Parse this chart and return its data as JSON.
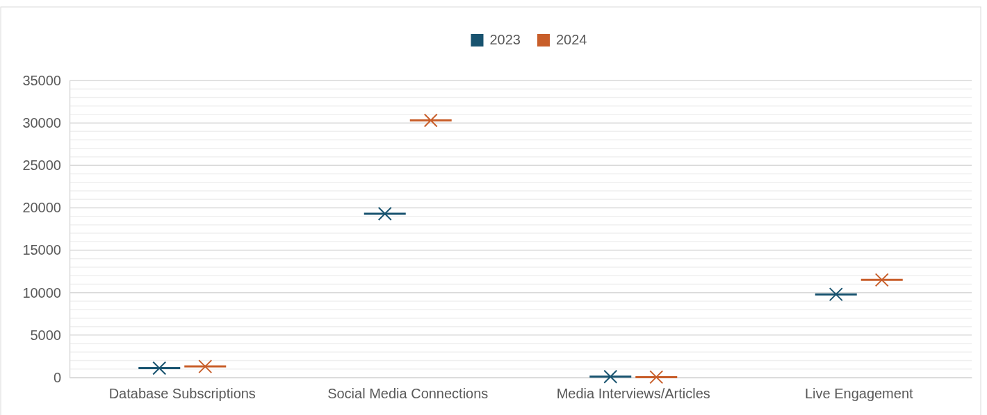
{
  "chart_data": {
    "type": "box",
    "categories": [
      "Database Subscriptions",
      "Social Media Connections",
      "Media Interviews/Articles",
      "Live Engagement"
    ],
    "series": [
      {
        "name": "2023",
        "color": "#18536f",
        "boxes": [
          {
            "low": 1100,
            "q1": 1100,
            "median": 1100,
            "q3": 1100,
            "high": 1100,
            "mean": 1100
          },
          {
            "low": 19300,
            "q1": 19300,
            "median": 19300,
            "q3": 19300,
            "high": 19300,
            "mean": 19300
          },
          {
            "low": 100,
            "q1": 100,
            "median": 100,
            "q3": 100,
            "high": 100,
            "mean": 100
          },
          {
            "low": 9800,
            "q1": 9800,
            "median": 9800,
            "q3": 9800,
            "high": 9800,
            "mean": 9800
          }
        ]
      },
      {
        "name": "2024",
        "color": "#c85e2a",
        "boxes": [
          {
            "low": 1300,
            "q1": 1300,
            "median": 1300,
            "q3": 1300,
            "high": 1300,
            "mean": 1300
          },
          {
            "low": 30300,
            "q1": 30300,
            "median": 30300,
            "q3": 30300,
            "high": 30300,
            "mean": 30300
          },
          {
            "low": 50,
            "q1": 50,
            "median": 50,
            "q3": 50,
            "high": 50,
            "mean": 50
          },
          {
            "low": 11500,
            "q1": 11500,
            "median": 11500,
            "q3": 11500,
            "high": 11500,
            "mean": 11500
          }
        ]
      }
    ],
    "ylim": [
      0,
      35000
    ],
    "yticks": [
      0,
      5000,
      10000,
      15000,
      20000,
      25000,
      30000,
      35000
    ],
    "grid": true,
    "legend": "top",
    "marker": "cross"
  }
}
